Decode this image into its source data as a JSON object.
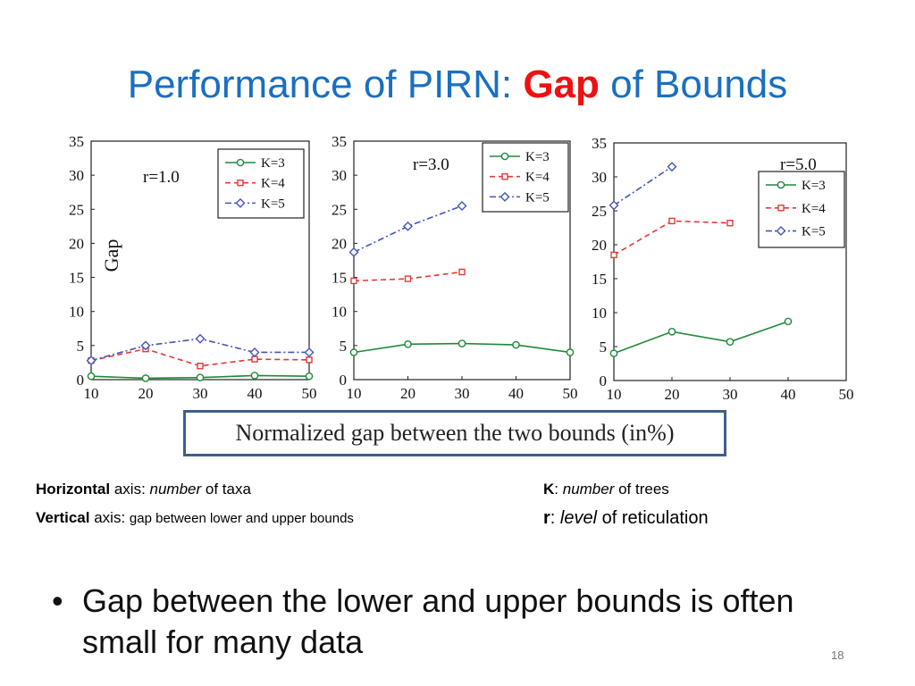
{
  "slide": {
    "title_pre": "Performance of PIRN: ",
    "title_highlight": "Gap",
    "title_post": " of Bounds",
    "caption": "Normalized gap between the two bounds (in%)",
    "notes_left": {
      "h_bold": "Horizontal",
      "h_mid": " axis: ",
      "h_ital": "number",
      "h_end": " of taxa",
      "v_bold": "Vertical",
      "v_mid": " axis: ",
      "v_end": "gap between lower and upper bounds"
    },
    "notes_right": {
      "k_bold": "K",
      "k_mid": ": ",
      "k_ital": "number",
      "k_end": " of trees",
      "r_bold": "r",
      "r_mid": ": ",
      "r_ital": "level",
      "r_end": " of reticulation"
    },
    "bullet_symbol": "•",
    "bullet": "Gap between the lower and upper bounds is often small for many data",
    "slide_number": "18"
  },
  "colors": {
    "title": "#1a6fc0",
    "highlight": "#ee1111",
    "k3": "#1f8a3a",
    "k4": "#e23a3a",
    "k5": "#4455bb",
    "caption_border": "#3d5f8c"
  },
  "chart_data": [
    {
      "type": "line",
      "panel_label": "r=1.0",
      "ylabel": "Gap",
      "x": [
        10,
        20,
        30,
        40,
        50
      ],
      "xlim": [
        10,
        50
      ],
      "ylim": [
        0,
        35
      ],
      "xticks": [
        10,
        20,
        30,
        40,
        50
      ],
      "yticks": [
        0,
        5,
        10,
        15,
        20,
        25,
        30,
        35
      ],
      "legend_position": "top-right",
      "series": [
        {
          "name": "K=3",
          "values": [
            0.5,
            0.2,
            0.3,
            0.6,
            0.5
          ],
          "marker": "circle",
          "color": "#1f8a3a",
          "dash": "solid"
        },
        {
          "name": "K=4",
          "values": [
            2.8,
            4.5,
            2.0,
            3.0,
            2.9
          ],
          "marker": "square",
          "color": "#e23a3a",
          "dash": "dashed"
        },
        {
          "name": "K=5",
          "values": [
            2.8,
            5.0,
            6.0,
            4.0,
            4.0
          ],
          "marker": "diamond",
          "color": "#4455bb",
          "dash": "dashdot"
        }
      ]
    },
    {
      "type": "line",
      "panel_label": "r=3.0",
      "ylabel": "",
      "x": [
        10,
        20,
        30,
        40,
        50
      ],
      "xlim": [
        10,
        50
      ],
      "ylim": [
        0,
        35
      ],
      "xticks": [
        10,
        20,
        30,
        40,
        50
      ],
      "yticks": [
        0,
        5,
        10,
        15,
        20,
        25,
        30,
        35
      ],
      "legend_position": "top-right",
      "series": [
        {
          "name": "K=3",
          "values": [
            4.0,
            5.2,
            5.3,
            5.1,
            4.0
          ],
          "marker": "circle",
          "color": "#1f8a3a",
          "dash": "solid"
        },
        {
          "name": "K=4",
          "values": [
            14.5,
            14.8,
            15.8,
            null,
            null
          ],
          "marker": "square",
          "color": "#e23a3a",
          "dash": "dashed"
        },
        {
          "name": "K=5",
          "values": [
            18.7,
            22.5,
            25.5,
            null,
            null
          ],
          "marker": "diamond",
          "color": "#4455bb",
          "dash": "dashdot"
        }
      ]
    },
    {
      "type": "line",
      "panel_label": "r=5.0",
      "ylabel": "",
      "x": [
        10,
        20,
        30,
        40,
        50
      ],
      "xlim": [
        10,
        50
      ],
      "ylim": [
        0,
        35
      ],
      "xticks": [
        10,
        20,
        30,
        40,
        50
      ],
      "yticks": [
        0,
        5,
        10,
        15,
        20,
        25,
        30,
        35
      ],
      "legend_position": "top-right",
      "series": [
        {
          "name": "K=3",
          "values": [
            4.0,
            7.2,
            5.7,
            8.7,
            null
          ],
          "marker": "circle",
          "color": "#1f8a3a",
          "dash": "solid"
        },
        {
          "name": "K=4",
          "values": [
            18.5,
            23.5,
            23.2,
            null,
            null
          ],
          "marker": "square",
          "color": "#e23a3a",
          "dash": "dashed"
        },
        {
          "name": "K=5",
          "values": [
            25.8,
            31.5,
            null,
            null,
            null
          ],
          "marker": "diamond",
          "color": "#4455bb",
          "dash": "dashdot"
        }
      ]
    }
  ]
}
